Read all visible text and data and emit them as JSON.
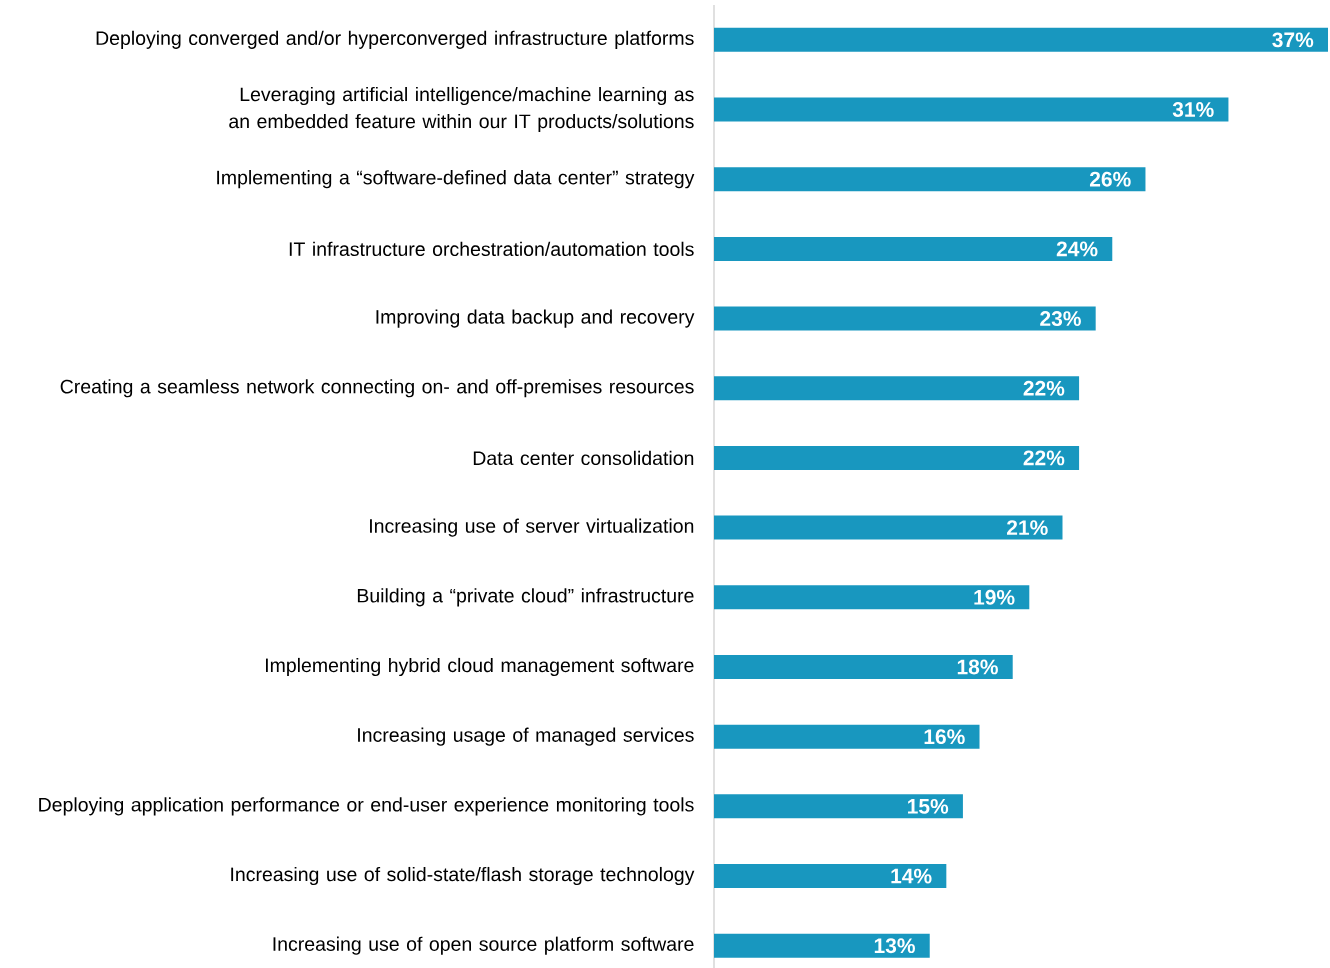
{
  "chart_data": {
    "type": "bar",
    "orientation": "horizontal",
    "color": "#1897bf",
    "categories": [
      "Deploying converged and/or hyperconverged infrastructure platforms",
      "Leveraging artificial intelligence/machine learning as an embedded feature within our IT products/solutions",
      "Implementing a “software-defined data center” strategy",
      "IT infrastructure orchestration/automation tools",
      "Improving data backup and recovery",
      "Creating a seamless network connecting on- and off-premises resources",
      "Data center consolidation",
      "Increasing use of server virtualization",
      "Building a “private cloud” infrastructure",
      "Implementing hybrid cloud management software",
      "Increasing usage of managed services",
      "Deploying application performance or end-user experience monitoring tools",
      "Increasing use of solid-state/flash storage technology",
      "Increasing use of open source platform software"
    ],
    "values": [
      37,
      31,
      26,
      24,
      23,
      22,
      22,
      21,
      19,
      18,
      16,
      15,
      14,
      13
    ],
    "value_labels": [
      "37%",
      "31%",
      "26%",
      "24%",
      "23%",
      "22%",
      "22%",
      "21%",
      "19%",
      "18%",
      "16%",
      "15%",
      "14%",
      "13%"
    ]
  }
}
